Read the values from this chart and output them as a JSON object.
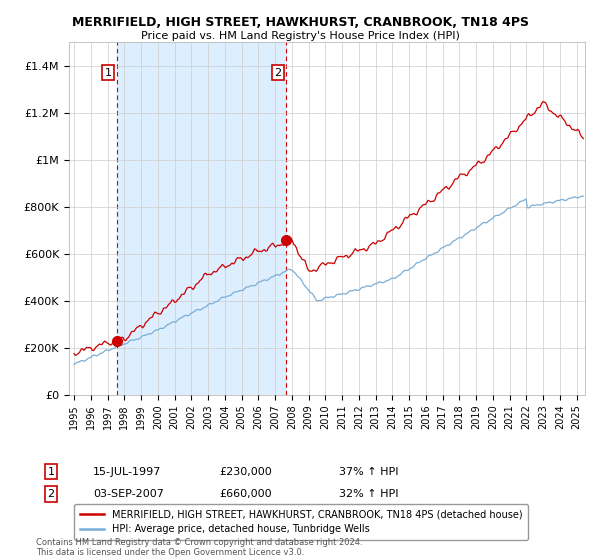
{
  "title": "MERRIFIELD, HIGH STREET, HAWKHURST, CRANBROOK, TN18 4PS",
  "subtitle": "Price paid vs. HM Land Registry's House Price Index (HPI)",
  "ylim": [
    0,
    1500000
  ],
  "yticks": [
    0,
    200000,
    400000,
    600000,
    800000,
    1000000,
    1200000,
    1400000
  ],
  "ytick_labels": [
    "£0",
    "£200K",
    "£400K",
    "£600K",
    "£800K",
    "£1M",
    "£1.2M",
    "£1.4M"
  ],
  "red_line_color": "#cc0000",
  "blue_line_color": "#7aaed6",
  "shade_color": "#ddeeff",
  "sale1_date": 1997.54,
  "sale1_price": 230000,
  "sale1_label": "1",
  "sale2_date": 2007.67,
  "sale2_price": 660000,
  "sale2_label": "2",
  "legend_red": "MERRIFIELD, HIGH STREET, HAWKHURST, CRANBROOK, TN18 4PS (detached house)",
  "legend_blue": "HPI: Average price, detached house, Tunbridge Wells",
  "annotation1_date": "15-JUL-1997",
  "annotation1_price": "£230,000",
  "annotation1_hpi": "37% ↑ HPI",
  "annotation2_date": "03-SEP-2007",
  "annotation2_price": "£660,000",
  "annotation2_hpi": "32% ↑ HPI",
  "footer": "Contains HM Land Registry data © Crown copyright and database right 2024.\nThis data is licensed under the Open Government Licence v3.0.",
  "background_color": "#ffffff",
  "grid_color": "#cccccc",
  "xlim_start": 1994.7,
  "xlim_end": 2025.5
}
